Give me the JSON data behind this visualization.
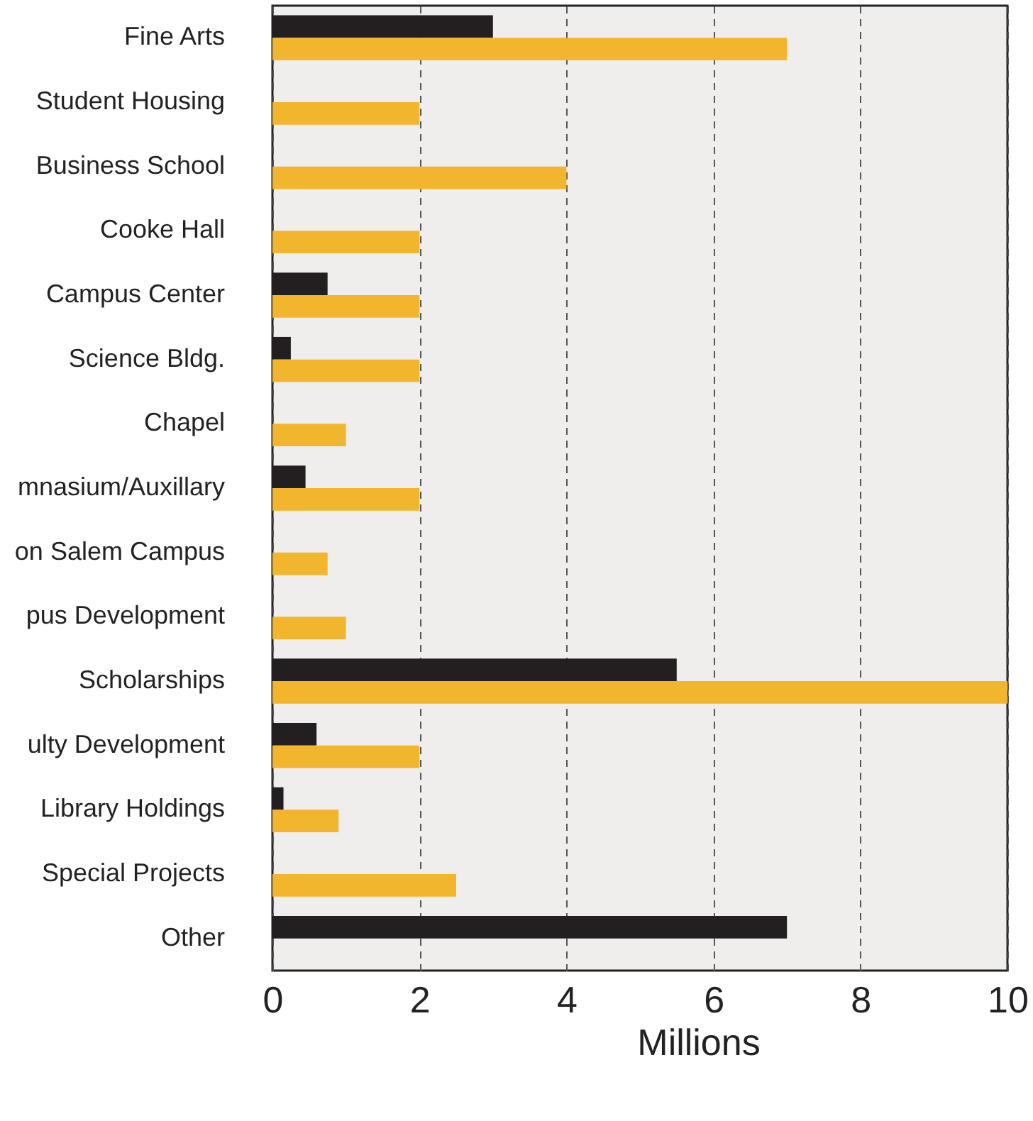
{
  "chart_data": {
    "type": "bar",
    "orientation": "horizontal",
    "xlabel": "Millions",
    "categories": [
      "Fine Arts",
      "Student Housing",
      "Business School",
      "Cooke Hall",
      "Campus Center",
      "Science Bldg.",
      "Chapel",
      "mnasium/Auxillary",
      "on Salem Campus",
      "pus Development",
      "Scholarships",
      "ulty Development",
      "Library Holdings",
      "Special Projects",
      "Other"
    ],
    "series": [
      {
        "color": "#231f20",
        "values": [
          3,
          null,
          null,
          null,
          0.75,
          0.25,
          null,
          0.45,
          null,
          null,
          5.5,
          0.6,
          0.15,
          null,
          7
        ]
      },
      {
        "color": "#f2b52e",
        "values": [
          7,
          2,
          4,
          2,
          2,
          2,
          1,
          2,
          0.75,
          1,
          10,
          2,
          0.9,
          2.5,
          null
        ]
      }
    ],
    "xlim": [
      0,
      10
    ],
    "xticks": [
      0,
      2,
      4,
      6,
      8,
      10
    ],
    "grid": "x"
  }
}
